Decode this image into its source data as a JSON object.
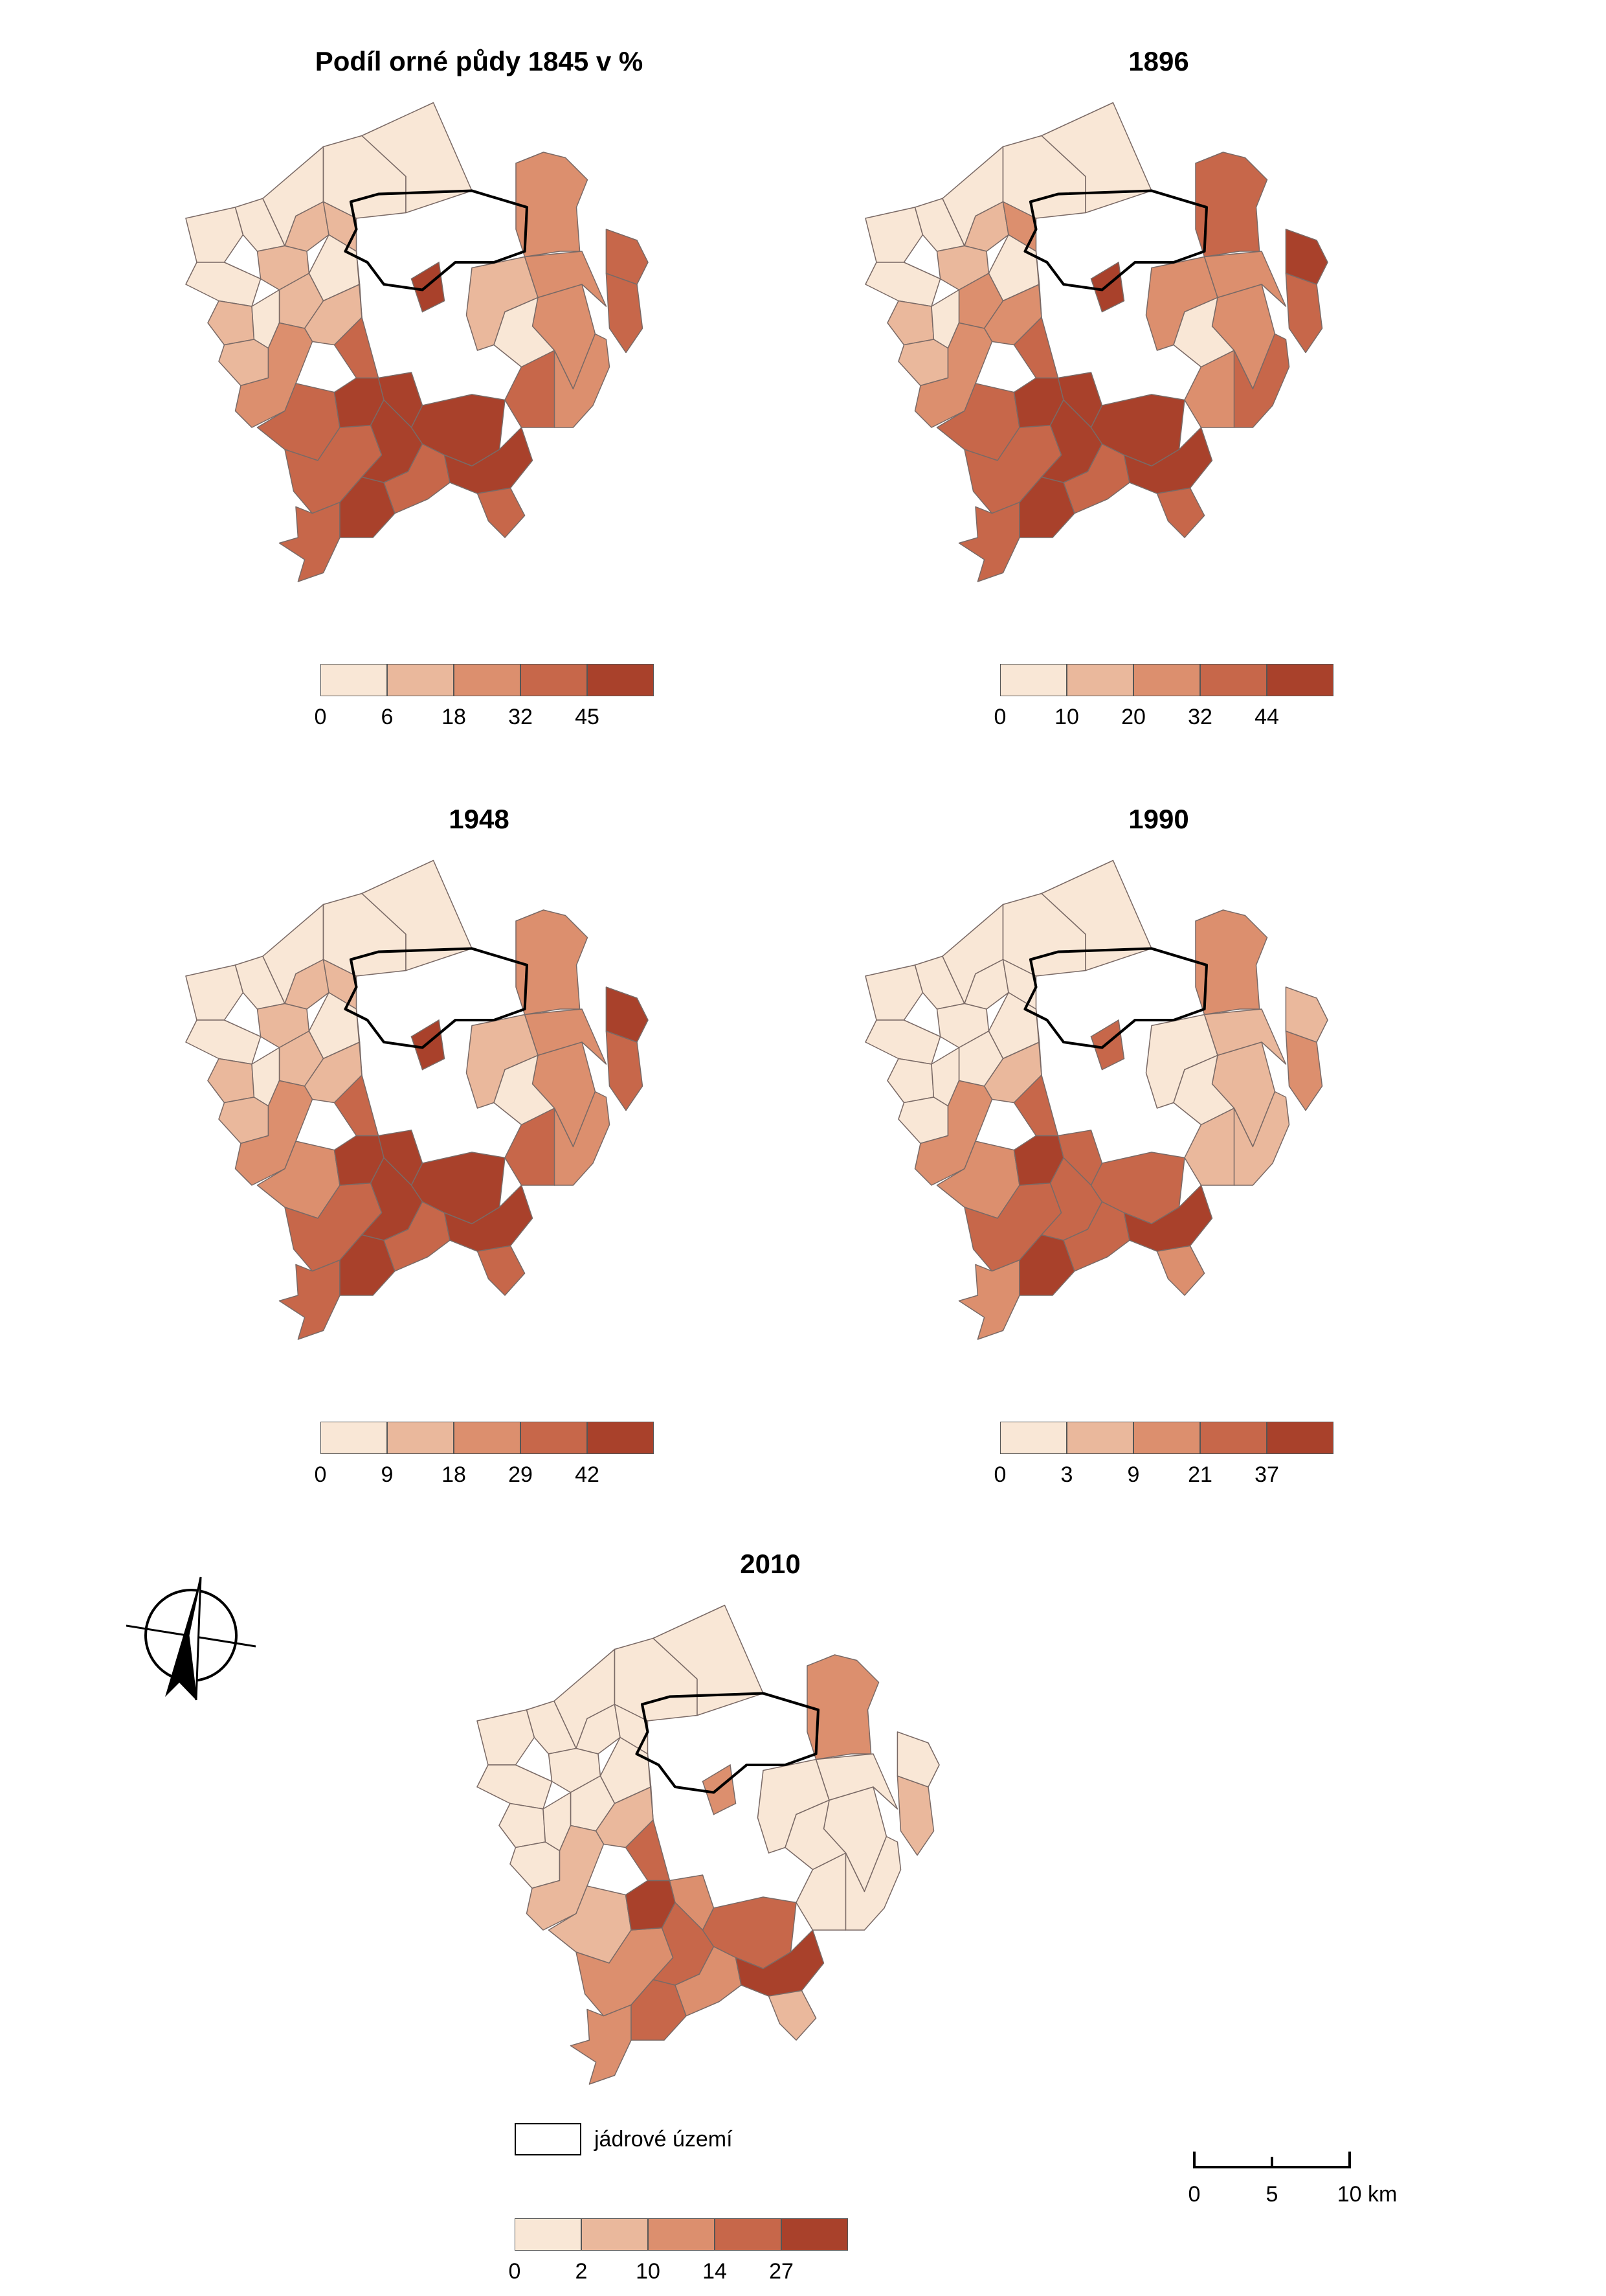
{
  "figure": {
    "maps": [
      {
        "title": "Podíl orné půdy 1845 v %",
        "legend_breaks": [
          "0",
          "6",
          "18",
          "32",
          "45"
        ],
        "legend_colors": [
          "#f9e7d6",
          "#eab89c",
          "#dc8f6e",
          "#c7674a",
          "#a9412b"
        ],
        "region_classes": [
          0,
          0,
          0,
          0,
          0,
          1,
          1,
          0,
          1,
          0,
          1,
          1,
          0,
          1,
          1,
          2,
          3,
          3,
          3,
          4,
          4,
          3,
          4,
          4,
          4,
          3,
          4,
          3,
          3,
          2,
          1,
          2,
          3,
          2,
          0,
          3,
          2
        ]
      },
      {
        "title": "1896",
        "legend_breaks": [
          "0",
          "10",
          "20",
          "32",
          "44"
        ],
        "legend_colors": [
          "#f9e7d6",
          "#eab89c",
          "#dc8f6e",
          "#c7674a",
          "#a9412b"
        ],
        "region_classes": [
          0,
          0,
          0,
          0,
          0,
          1,
          2,
          0,
          1,
          0,
          1,
          2,
          0,
          1,
          2,
          2,
          3,
          3,
          3,
          4,
          4,
          3,
          4,
          4,
          4,
          3,
          4,
          3,
          2,
          2,
          2,
          2,
          3,
          3,
          0,
          4,
          3
        ]
      },
      {
        "title": "1948",
        "legend_breaks": [
          "0",
          "9",
          "18",
          "29",
          "42"
        ],
        "legend_colors": [
          "#f9e7d6",
          "#eab89c",
          "#dc8f6e",
          "#c7674a",
          "#a9412b"
        ],
        "region_classes": [
          0,
          0,
          0,
          0,
          0,
          1,
          1,
          0,
          1,
          0,
          1,
          1,
          0,
          1,
          1,
          2,
          2,
          3,
          3,
          4,
          4,
          3,
          4,
          4,
          4,
          3,
          4,
          3,
          3,
          2,
          1,
          2,
          3,
          2,
          0,
          4,
          2
        ]
      },
      {
        "title": "1990",
        "legend_breaks": [
          "0",
          "3",
          "9",
          "21",
          "37"
        ],
        "legend_colors": [
          "#f9e7d6",
          "#eab89c",
          "#dc8f6e",
          "#c7674a",
          "#a9412b"
        ],
        "region_classes": [
          0,
          0,
          0,
          0,
          0,
          0,
          0,
          0,
          0,
          0,
          0,
          0,
          0,
          0,
          1,
          2,
          2,
          3,
          2,
          4,
          4,
          3,
          3,
          3,
          3,
          3,
          4,
          2,
          1,
          1,
          0,
          1,
          2,
          1,
          0,
          1,
          2
        ]
      },
      {
        "title": "2010",
        "legend_breaks": [
          "0",
          "2",
          "10",
          "14",
          "27"
        ],
        "legend_colors": [
          "#f9e7d6",
          "#eab89c",
          "#dc8f6e",
          "#c7674a",
          "#a9412b"
        ],
        "region_classes": [
          0,
          0,
          0,
          0,
          0,
          0,
          0,
          0,
          0,
          0,
          0,
          0,
          0,
          0,
          1,
          1,
          1,
          2,
          2,
          3,
          4,
          3,
          2,
          3,
          3,
          2,
          4,
          1,
          0,
          0,
          0,
          0,
          1,
          0,
          0,
          0,
          2
        ]
      }
    ],
    "core_legend_label": "jádrové území",
    "scale_labels": [
      "0",
      "5",
      "10 km"
    ],
    "core_outline_color": "#000000",
    "boundary_color": "#7a6a66",
    "north_arrow_icon": "north-arrow-icon"
  }
}
